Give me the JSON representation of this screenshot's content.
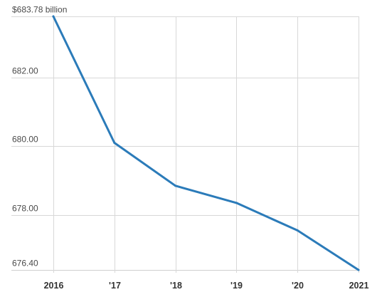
{
  "chart_data": {
    "type": "line",
    "x": [
      "2016",
      "'17",
      "'18",
      "'19",
      "'20",
      "2021"
    ],
    "series": [
      {
        "values": [
          683.78,
          680.1,
          678.85,
          678.35,
          677.55,
          676.4
        ]
      }
    ],
    "y_ticks": [
      {
        "value": 683.78,
        "label": "$683.78 billion"
      },
      {
        "value": 682.0,
        "label": "682.00"
      },
      {
        "value": 680.0,
        "label": "680.00"
      },
      {
        "value": 678.0,
        "label": "678.00"
      },
      {
        "value": 676.4,
        "label": "676.40"
      }
    ],
    "ylim": [
      676.4,
      683.78
    ],
    "grid": true,
    "line_color": "#2b7bb9"
  }
}
